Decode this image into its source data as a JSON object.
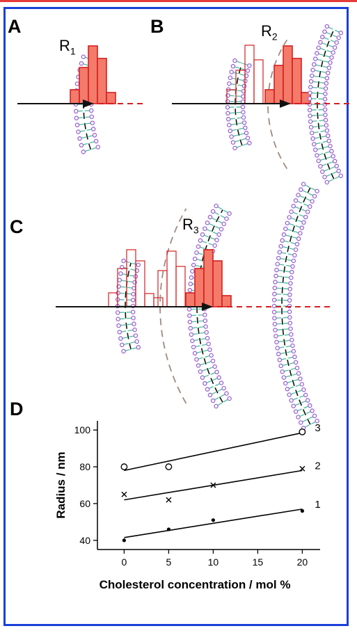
{
  "panels": {
    "a": {
      "label": "A",
      "radius_main": "R",
      "radius_sub": "1"
    },
    "b": {
      "label": "B",
      "radius_main": "R",
      "radius_sub": "2"
    },
    "c": {
      "label": "C",
      "radius_main": "R",
      "radius_sub": "3"
    },
    "d": {
      "label": "D"
    }
  },
  "colors": {
    "frame": "#1a3fd8",
    "bar_fill": "#f47a6a",
    "bar_stroke": "#d41f1f",
    "lipid_head": "#9b64d4",
    "lipid_tail": "#4fc4a0",
    "guide_dash": "#a08a80"
  },
  "chart_data": {
    "type": "scatter",
    "title": "",
    "xlabel": "Cholesterol concentration / mol %",
    "ylabel": "Radius / nm",
    "xlim": [
      -3,
      22
    ],
    "ylim": [
      35,
      105
    ],
    "x_ticks": [
      0,
      5,
      10,
      15,
      20
    ],
    "y_ticks": [
      40,
      60,
      80,
      100
    ],
    "grid": false,
    "series": [
      {
        "name": "1",
        "marker": "filled-circle",
        "points": [
          [
            0,
            40
          ],
          [
            5,
            46
          ],
          [
            10,
            51
          ],
          [
            20,
            56
          ]
        ],
        "fit": [
          [
            0,
            41.5
          ],
          [
            20,
            57
          ]
        ]
      },
      {
        "name": "2",
        "marker": "cross",
        "points": [
          [
            0,
            65
          ],
          [
            5,
            62
          ],
          [
            10,
            70
          ],
          [
            20,
            79
          ]
        ],
        "fit": [
          [
            0,
            62
          ],
          [
            20,
            78
          ]
        ]
      },
      {
        "name": "3",
        "marker": "open-circle",
        "points": [
          [
            0,
            80
          ],
          [
            5,
            80
          ],
          [
            20,
            99
          ]
        ],
        "fit": [
          [
            0,
            78
          ],
          [
            20,
            98.5
          ]
        ]
      }
    ]
  }
}
